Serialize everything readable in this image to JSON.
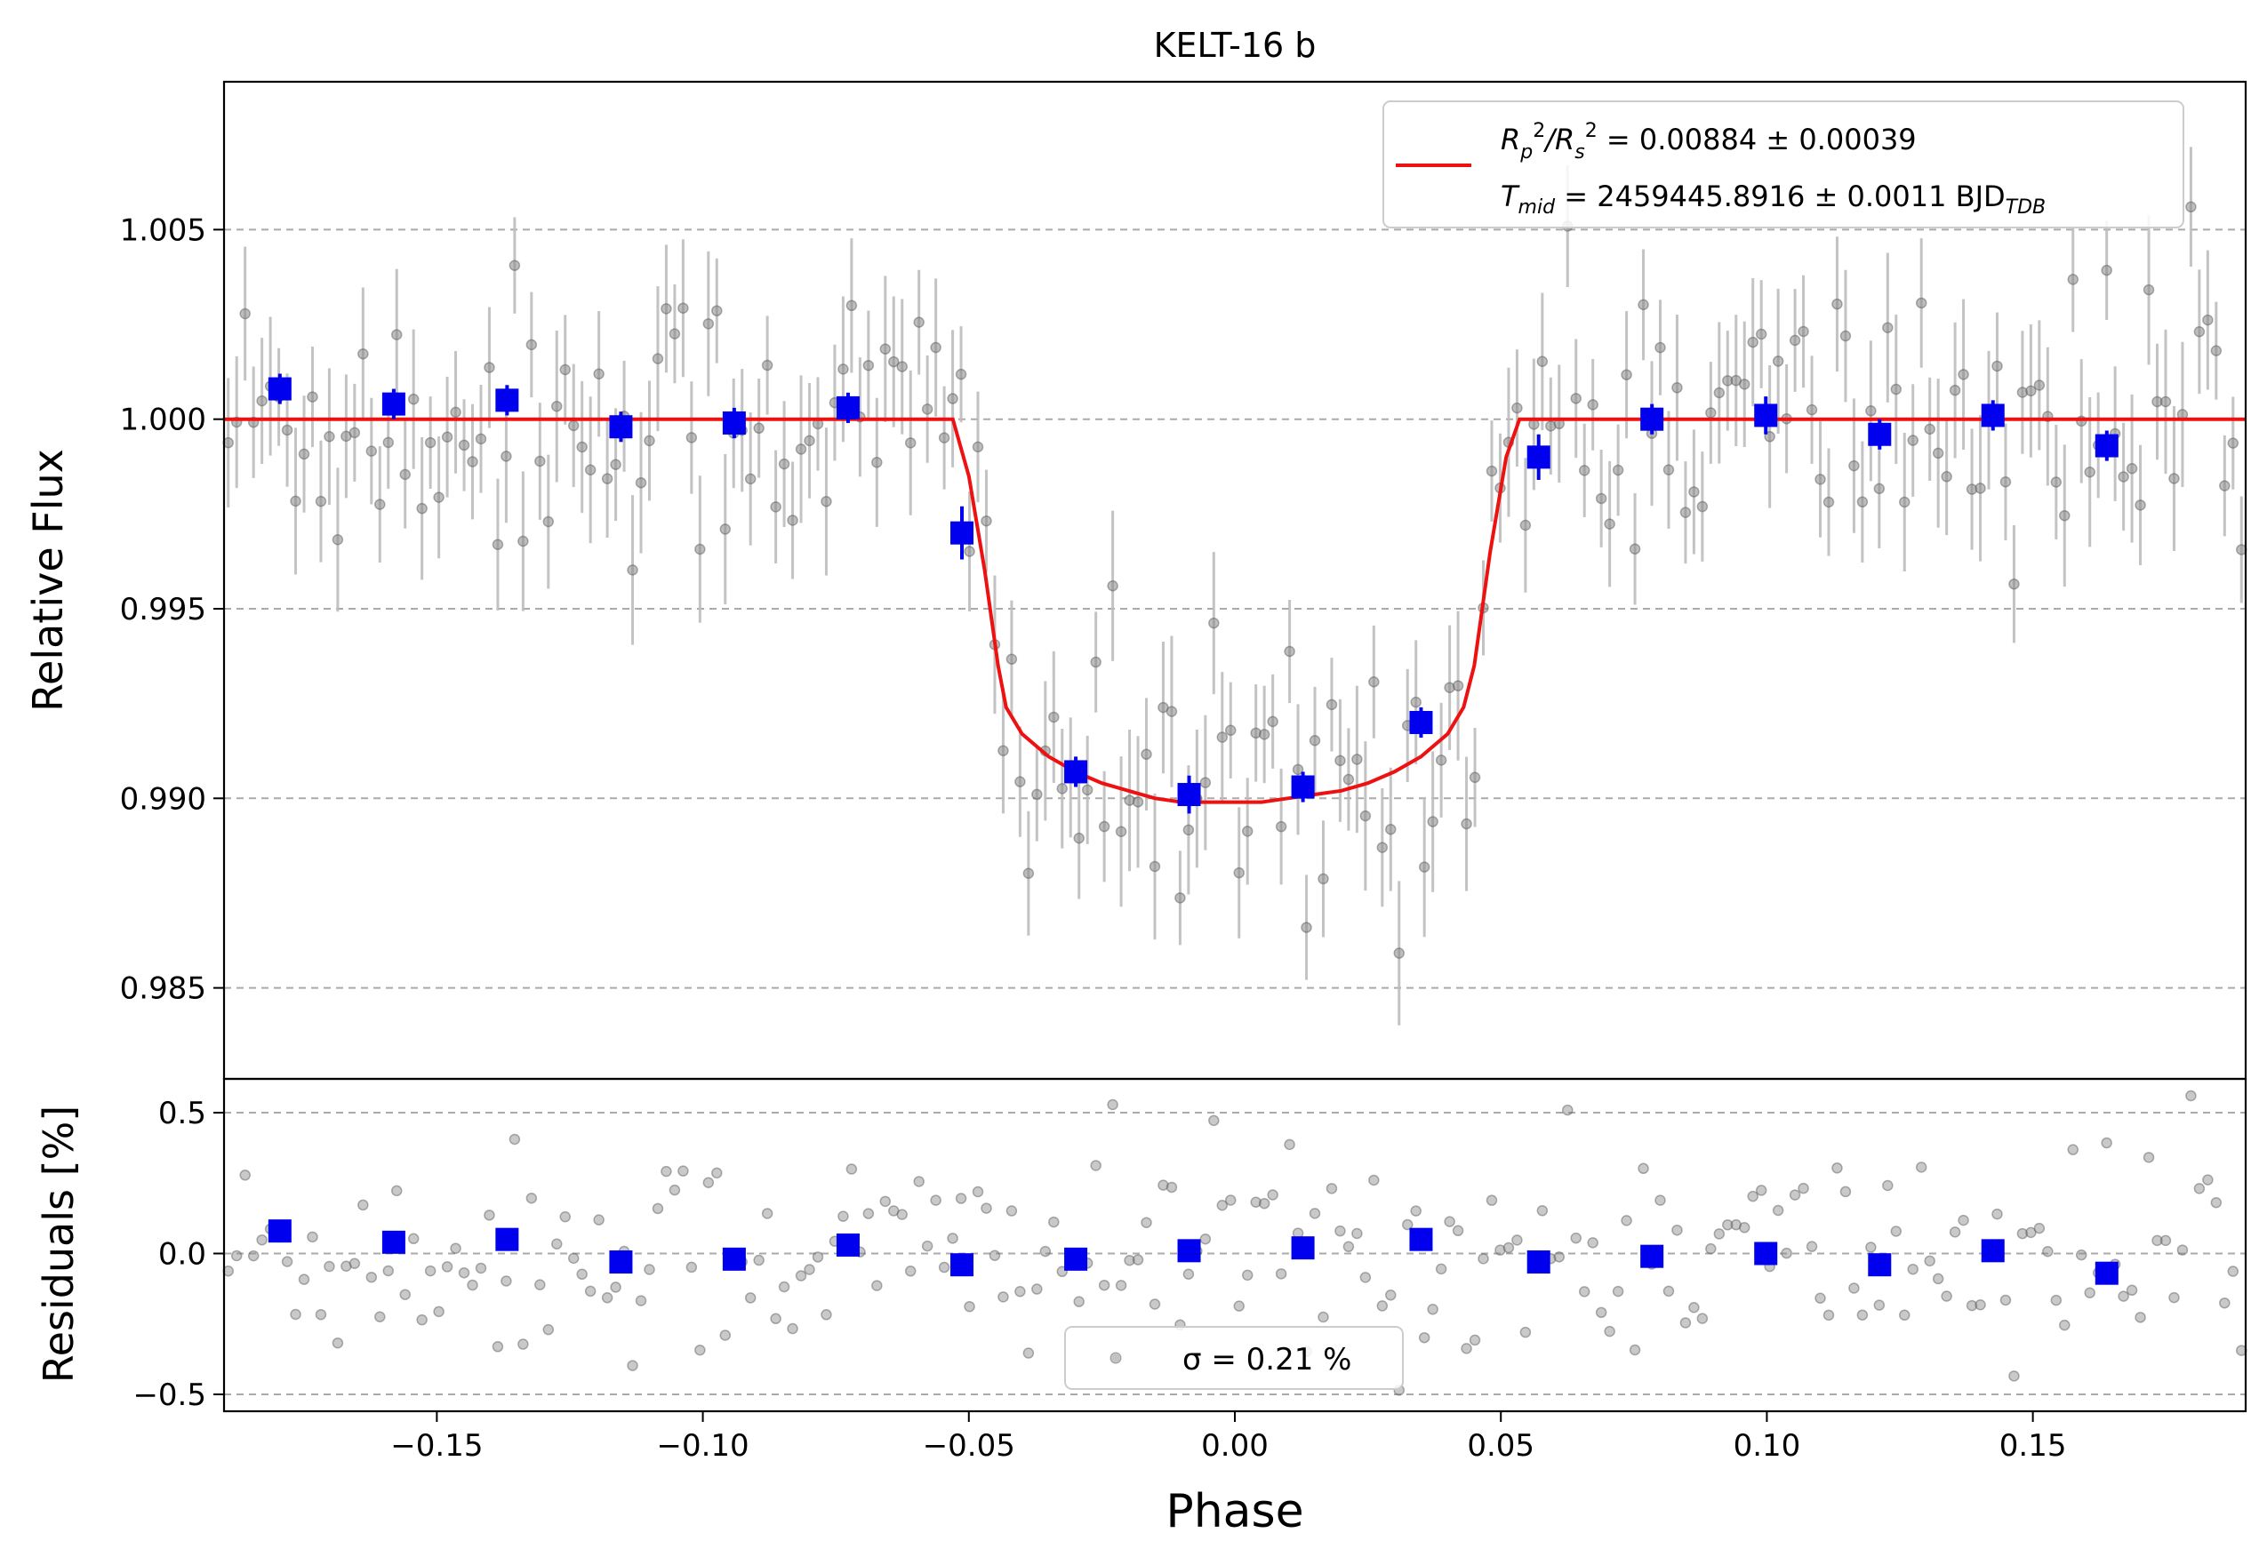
{
  "chart_data": [
    {
      "type": "scatter",
      "title": "KELT-16 b",
      "ylabel": "Relative Flux",
      "xlabel": "",
      "xlim": [
        -0.19,
        0.19
      ],
      "ylim": [
        0.9826,
        1.0089
      ],
      "xticks": [
        -0.15,
        -0.1,
        -0.05,
        0.0,
        0.05,
        0.1,
        0.15
      ],
      "yticks": [
        0.985,
        0.99,
        0.995,
        1.0,
        1.005
      ],
      "ytick_labels": [
        "0.985",
        "0.990",
        "0.995",
        "1.000",
        "1.005"
      ],
      "grid": "horizontal dashed",
      "legend": {
        "placement": "top-right",
        "line1": "R_p^2/R_s^2 = 0.00884 ± 0.00039",
        "line2": "T_mid = 2459445.8916 ± 0.0011 BJD_TDB",
        "line1_parts": {
          "pre": "R",
          "sub1": "p",
          "sup1": "2",
          "mid": "/R",
          "sub2": "s",
          "sup2": "2",
          "post": " = 0.00884 ± 0.00039"
        },
        "line2_parts": {
          "pre": "T",
          "sub1": "mid",
          "post": " = 2459445.8916 ± 0.0011 BJD",
          "sub2": "TDB"
        }
      },
      "colors": {
        "model": "#ee1111",
        "binned": "#0000ee",
        "raw": "#888888",
        "errorbar": "#bdbdbd",
        "grid": "#aaaaaa"
      },
      "series": [
        {
          "kind": "binned",
          "x": [
            -0.1795,
            -0.1581,
            -0.1368,
            -0.1154,
            -0.0941,
            -0.0727,
            -0.0513,
            -0.0299,
            -0.0086,
            0.0128,
            0.035,
            0.0571,
            0.0784,
            0.0998,
            0.1212,
            0.1425,
            0.1639
          ],
          "y": [
            1.0008,
            1.0004,
            1.0005,
            0.9998,
            0.9999,
            1.0003,
            0.997,
            0.9907,
            0.9901,
            0.9903,
            0.992,
            0.999,
            1.0,
            1.0001,
            0.9996,
            1.0001,
            0.9993
          ],
          "yerr": [
            0.0004,
            0.0004,
            0.0004,
            0.0004,
            0.0004,
            0.0004,
            0.0007,
            0.0004,
            0.0005,
            0.0004,
            0.0004,
            0.0006,
            0.0004,
            0.0005,
            0.0004,
            0.0004,
            0.0004
          ]
        },
        {
          "kind": "model",
          "x": [
            -0.19,
            -0.053,
            -0.05,
            -0.047,
            -0.0445,
            -0.043,
            -0.04,
            -0.035,
            -0.03,
            -0.025,
            -0.02,
            -0.015,
            -0.01,
            -0.005,
            0.0,
            0.005,
            0.01,
            0.015,
            0.02,
            0.025,
            0.03,
            0.035,
            0.04,
            0.043,
            0.045,
            0.048,
            0.051,
            0.0535,
            0.19
          ],
          "y": [
            1.0,
            1.0,
            0.9985,
            0.996,
            0.9935,
            0.9924,
            0.9917,
            0.9911,
            0.9907,
            0.9904,
            0.9902,
            0.99,
            0.9899,
            0.9899,
            0.9899,
            0.9899,
            0.99,
            0.9901,
            0.9902,
            0.9904,
            0.9907,
            0.9911,
            0.9917,
            0.9924,
            0.9935,
            0.9965,
            0.999,
            1.0,
            1.0
          ]
        }
      ]
    },
    {
      "type": "scatter",
      "title": "",
      "xlabel": "Phase",
      "ylabel": "Residuals [%]",
      "xlim": [
        -0.19,
        0.19
      ],
      "ylim": [
        -0.56,
        0.62
      ],
      "xticks": [
        -0.15,
        -0.1,
        -0.05,
        0.0,
        0.05,
        0.1,
        0.15
      ],
      "xtick_labels": [
        "−0.15",
        "−0.10",
        "−0.05",
        "0.00",
        "0.05",
        "0.10",
        "0.15"
      ],
      "yticks": [
        -0.5,
        0.0,
        0.5
      ],
      "ytick_labels": [
        "−0.5",
        "0.0",
        "0.5"
      ],
      "grid": "horizontal dashed",
      "legend": {
        "placement": "bottom-center",
        "label": "σ = 0.21 %"
      },
      "series": [
        {
          "kind": "binned",
          "x": [
            -0.1795,
            -0.1581,
            -0.1368,
            -0.1154,
            -0.0941,
            -0.0727,
            -0.0513,
            -0.0299,
            -0.0086,
            0.0128,
            0.035,
            0.0571,
            0.0784,
            0.0998,
            0.1212,
            0.1425,
            0.1639
          ],
          "y": [
            0.08,
            0.04,
            0.05,
            -0.03,
            -0.02,
            0.03,
            -0.04,
            -0.02,
            0.01,
            0.02,
            0.05,
            -0.03,
            -0.01,
            0.0,
            -0.04,
            0.01,
            -0.07
          ]
        }
      ]
    }
  ]
}
